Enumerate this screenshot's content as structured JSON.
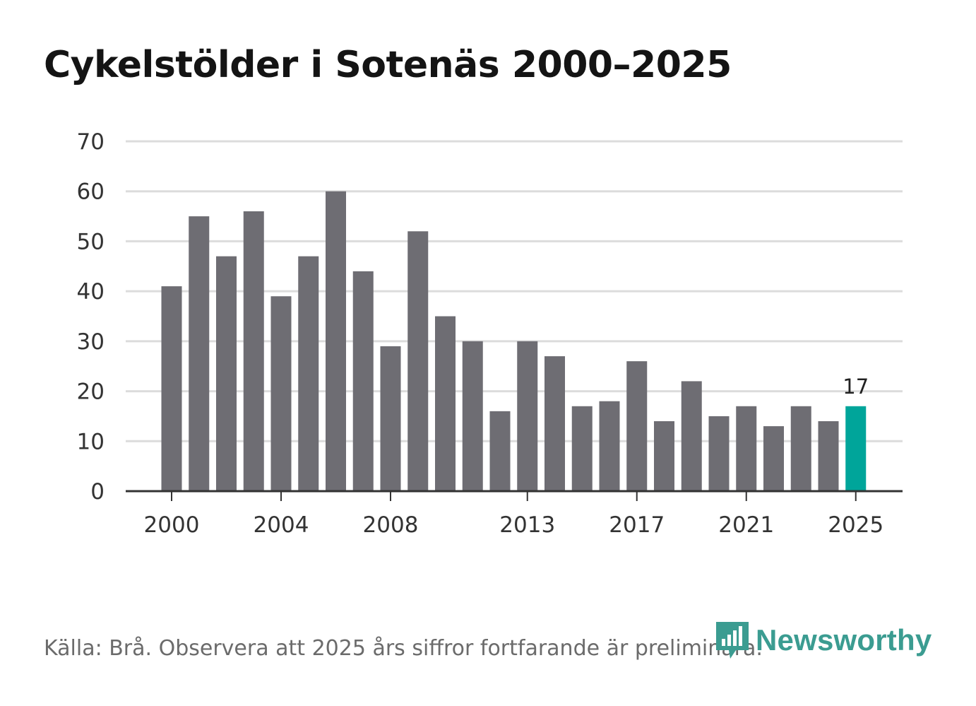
{
  "title": "Cykelstölder i Sotenäs 2000–2025",
  "source": "Källa: Brå. Observera att 2025 års siffror fortfarande är preliminära.",
  "logo": {
    "text": "Newsworthy",
    "icon": "newsworthy-chart-icon"
  },
  "colors": {
    "bar": "#6e6d73",
    "highlight": "#00a59a",
    "grid": "#dcdcdc",
    "axis": "#333333",
    "brand": "#3b9c91"
  },
  "chart_data": {
    "type": "bar",
    "title": "Cykelstölder i Sotenäs 2000–2025",
    "xlabel": "",
    "ylabel": "",
    "categories": [
      "2000",
      "2001",
      "2002",
      "2003",
      "2004",
      "2005",
      "2006",
      "2007",
      "2008",
      "2009",
      "2010",
      "2011",
      "2012",
      "2013",
      "2014",
      "2015",
      "2016",
      "2017",
      "2018",
      "2019",
      "2020",
      "2021",
      "2022",
      "2023",
      "2024",
      "2025"
    ],
    "values": [
      41,
      55,
      47,
      56,
      39,
      47,
      60,
      44,
      29,
      52,
      35,
      30,
      16,
      30,
      27,
      17,
      18,
      26,
      14,
      22,
      15,
      17,
      13,
      17,
      14,
      17
    ],
    "highlight_category": "2025",
    "highlight_label": "17",
    "ylim": [
      0,
      70
    ],
    "yticks": [
      "0",
      "10",
      "20",
      "30",
      "40",
      "50",
      "60",
      "70"
    ],
    "xticks": [
      "2000",
      "2004",
      "2008",
      "2013",
      "2017",
      "2021",
      "2025"
    ],
    "grid": true,
    "legend": "none"
  }
}
